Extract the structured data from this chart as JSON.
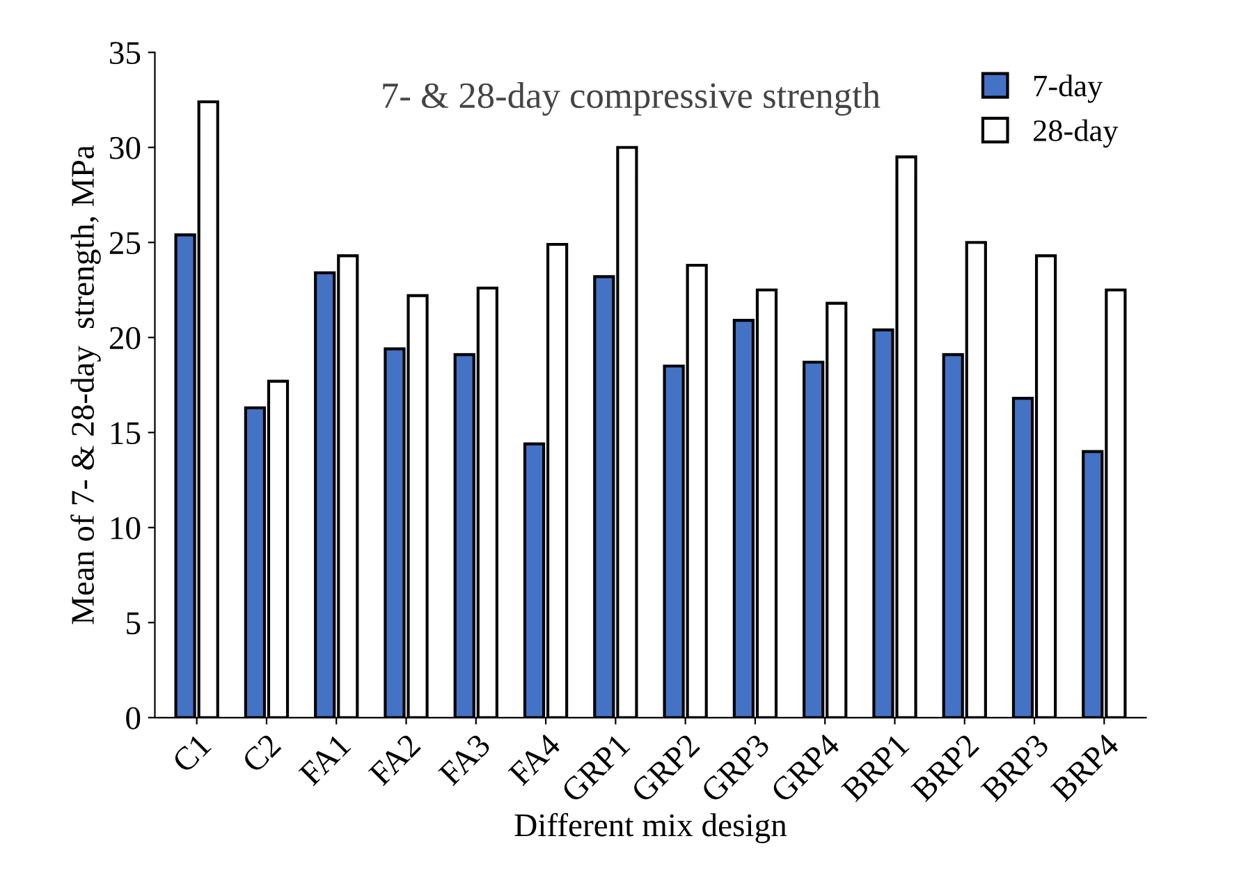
{
  "chart_data": {
    "type": "bar",
    "title": "7- & 28-day compressive strength",
    "xlabel": "Different mix design",
    "ylabel": "Mean of 7- & 28-day  strength, MPa",
    "categories": [
      "C1",
      "C2",
      "FA1",
      "FA2",
      "FA3",
      "FA4",
      "GRP1",
      "GRP2",
      "GRP3",
      "GRP4",
      "BRP1",
      "BRP2",
      "BRP3",
      "BRP4"
    ],
    "series": [
      {
        "name": "7-day",
        "color": "#4472c4",
        "values": [
          25.4,
          16.3,
          23.4,
          19.4,
          19.1,
          14.4,
          23.2,
          18.5,
          20.9,
          18.7,
          20.4,
          19.1,
          16.8,
          14.0
        ]
      },
      {
        "name": "28-day",
        "color": "#ffffff",
        "values": [
          32.4,
          17.7,
          24.3,
          22.2,
          22.6,
          24.9,
          30.0,
          23.8,
          22.5,
          21.8,
          29.5,
          25.0,
          24.3,
          22.5
        ]
      }
    ],
    "ylim": [
      0,
      35
    ],
    "yticks": [
      0,
      5,
      10,
      15,
      20,
      25,
      30,
      35
    ],
    "grid": false,
    "legend": "top right"
  }
}
